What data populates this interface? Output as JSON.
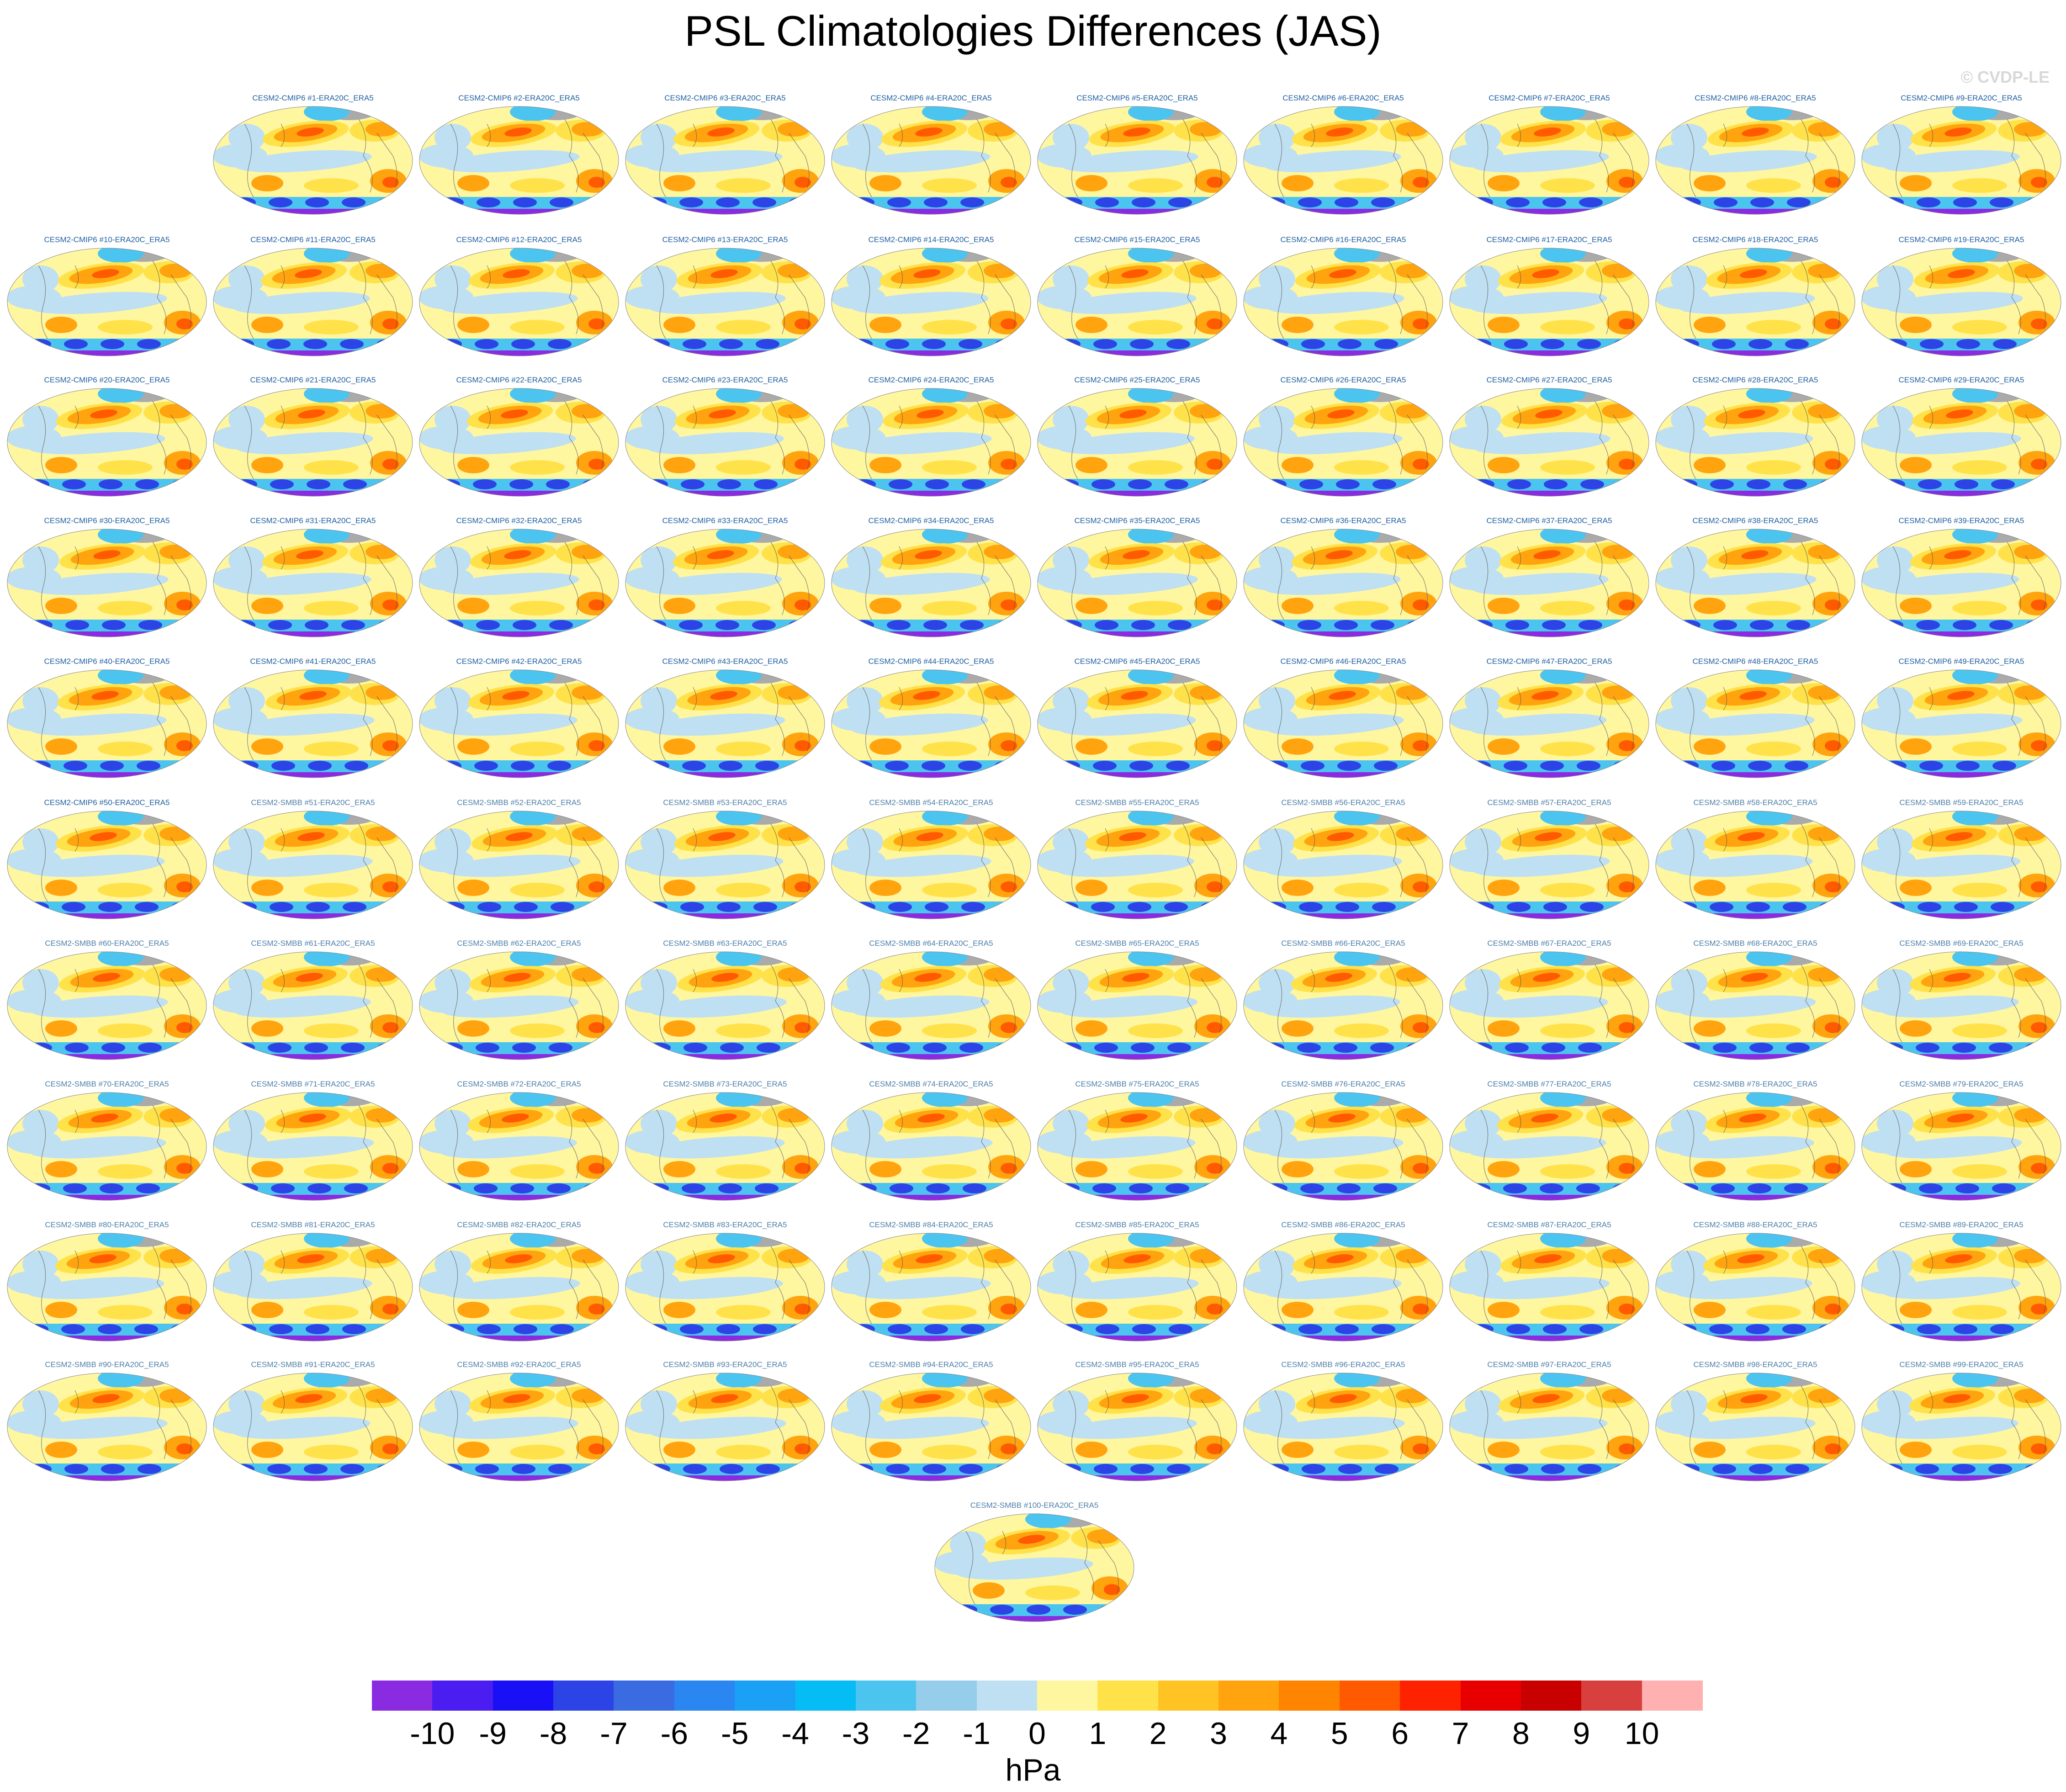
{
  "title": "PSL Climatologies Differences (JAS)",
  "watermark": "© CVDP-LE",
  "units": "hPa",
  "panel_label_suffix": "-ERA20C_ERA5",
  "ensembles": [
    {
      "name": "CESM2-CMIP6",
      "first": 1,
      "last": 50,
      "label_color": "#1f5fa0"
    },
    {
      "name": "CESM2-SMBB",
      "first": 51,
      "last": 100,
      "label_color": "#4d7fa8"
    }
  ],
  "colorbar": {
    "colors": [
      "#8a2be2",
      "#4b1df0",
      "#1a10f5",
      "#2c44e6",
      "#3a6be0",
      "#2a86f0",
      "#1aa0f5",
      "#06bcf5",
      "#4cc4f0",
      "#96cdea",
      "#bfe0f2",
      "#fff6a0",
      "#ffe24a",
      "#ffc423",
      "#ffa40e",
      "#ff8400",
      "#ff5a00",
      "#ff2200",
      "#e80000",
      "#c90000",
      "#d84040",
      "#ffb0b0"
    ],
    "tick_labels": [
      "-10",
      "-9",
      "-8",
      "-7",
      "-6",
      "-5",
      "-4",
      "-3",
      "-2",
      "-1",
      "0",
      "1",
      "2",
      "3",
      "4",
      "5",
      "6",
      "7",
      "8",
      "9",
      "10"
    ]
  },
  "map_colors": {
    "positive_light": "#fff6a0",
    "positive_mid": "#ffe24a",
    "positive_strong": "#ffa40e",
    "positive_peak": "#ff5a00",
    "negative_light": "#bfe0f2",
    "negative_mid": "#4cc4f0",
    "negative_strong": "#2c44e6",
    "negative_peak": "#8a2be2",
    "land_outline": "#555555",
    "missing": "#aaaaaa"
  }
}
